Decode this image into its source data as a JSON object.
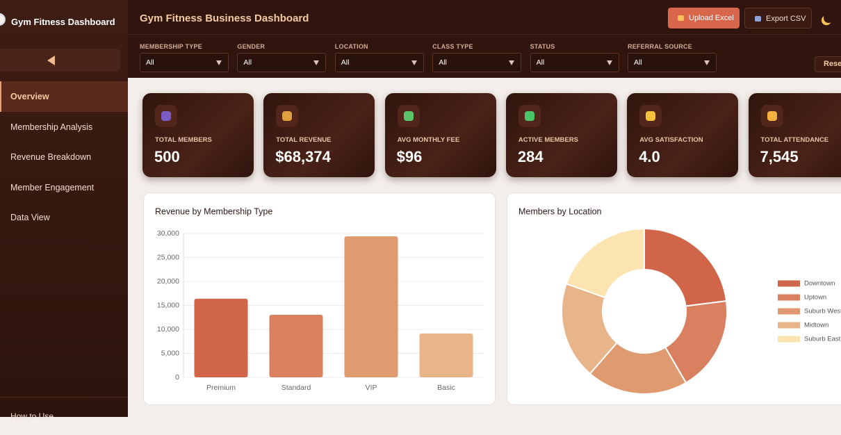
{
  "sidebar": {
    "brand": "Gym Fitness Dashboard",
    "nav": [
      "Overview",
      "Membership Analysis",
      "Revenue Breakdown",
      "Member Engagement",
      "Data View"
    ],
    "footer": "How to Use"
  },
  "header": {
    "title": "Gym Fitness Business Dashboard",
    "buttons": [
      "Upload Excel",
      "Export CSV"
    ]
  },
  "filters": {
    "items": [
      {
        "label": "MEMBERSHIP TYPE",
        "value": "All"
      },
      {
        "label": "GENDER",
        "value": "All"
      },
      {
        "label": "LOCATION",
        "value": "All"
      },
      {
        "label": "CLASS TYPE",
        "value": "All"
      },
      {
        "label": "STATUS",
        "value": "All"
      },
      {
        "label": "REFERRAL SOURCE",
        "value": "All"
      }
    ],
    "reset": "Reset"
  },
  "kpis": [
    {
      "label": "TOTAL MEMBERS",
      "value": "500"
    },
    {
      "label": "TOTAL REVENUE",
      "value": "$68,374"
    },
    {
      "label": "AVG MONTHLY FEE",
      "value": "$96"
    },
    {
      "label": "ACTIVE MEMBERS",
      "value": "284"
    },
    {
      "label": "AVG SATISFACTION",
      "value": "4.0"
    },
    {
      "label": "TOTAL ATTENDANCE",
      "value": "7,545"
    }
  ],
  "chart_data": [
    {
      "type": "bar",
      "title": "Revenue by Membership Type",
      "categories": [
        "Premium",
        "Standard",
        "VIP",
        "Basic"
      ],
      "values": [
        16400,
        13050,
        29400,
        9150
      ],
      "colors": [
        "#d0654a",
        "#d9805f",
        "#e09a70",
        "#e8b48a"
      ],
      "ylim": [
        0,
        30000
      ],
      "yticks": [
        0,
        {
          "value": 5000,
          "label": "5,000"
        },
        {
          "value": 10000,
          "label": "10,000"
        },
        {
          "value": 15000,
          "label": "15,000"
        },
        {
          "value": 20000,
          "label": "20,000"
        },
        {
          "value": 25000,
          "label": "25,000"
        },
        {
          "value": 30000,
          "label": "30,000"
        }
      ],
      "grid": true
    },
    {
      "type": "donut",
      "title": "Members by Location",
      "categories": [
        "Downtown",
        "Uptown",
        "Suburb West",
        "Midtown",
        "Suburb East"
      ],
      "values": [
        115,
        93,
        99,
        95,
        98
      ],
      "colors": [
        "#d0654a",
        "#d98060",
        "#e09a70",
        "#e8b48a",
        "#fbe4b0"
      ],
      "legend": "right"
    }
  ]
}
